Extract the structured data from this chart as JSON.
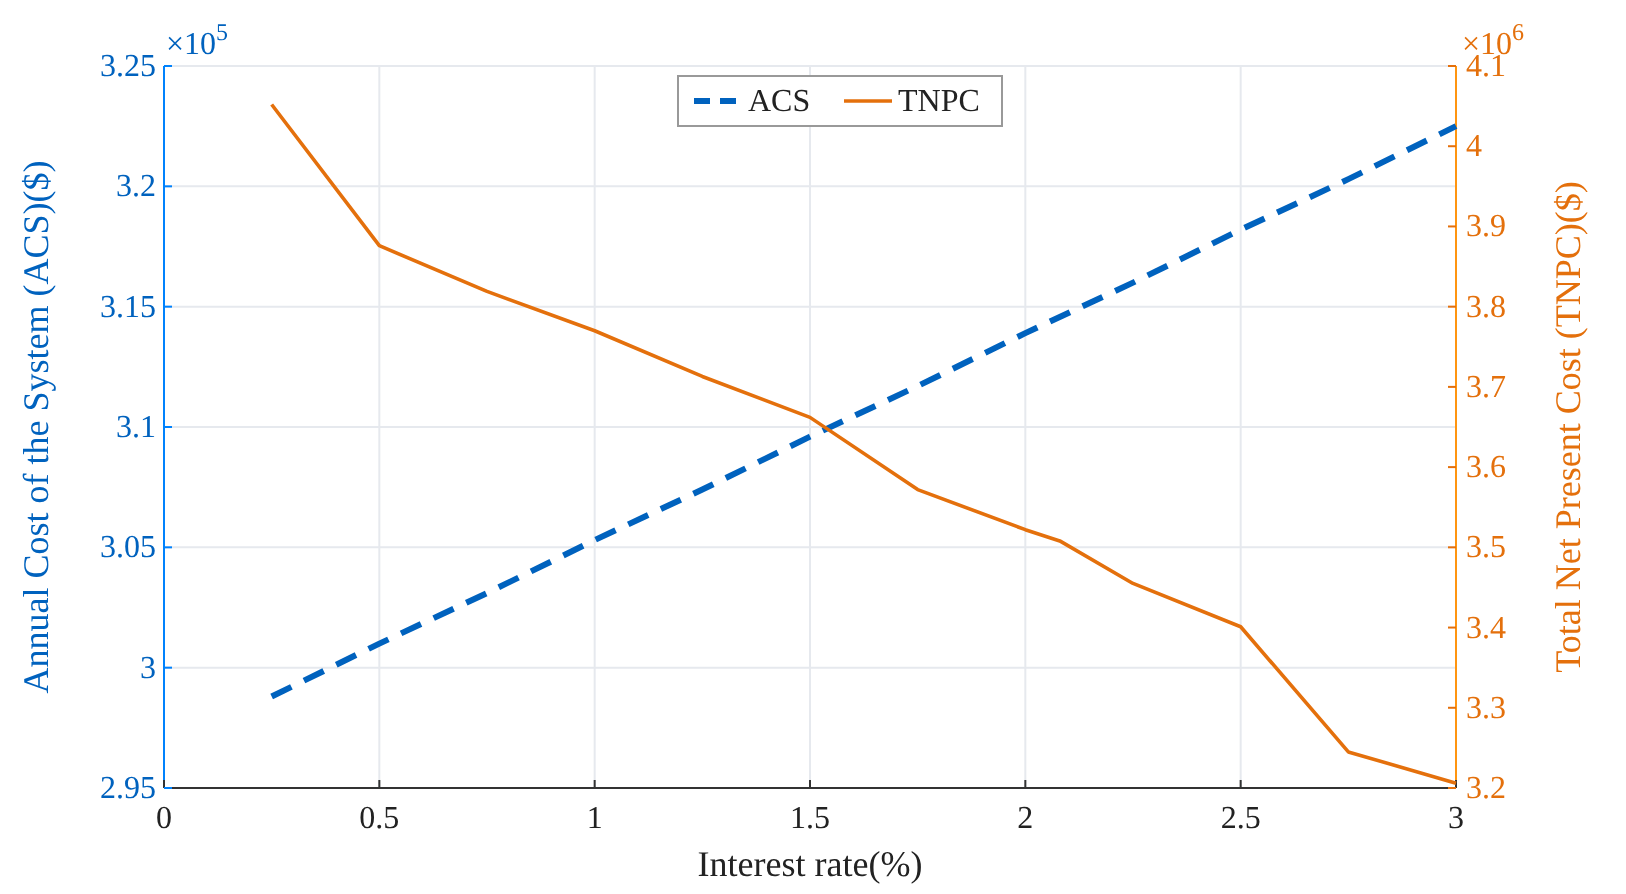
{
  "chart_data": {
    "type": "line",
    "xlabel": "Interest rate(%)",
    "ylabel": "Annual Cost of the System  (ACS)($)",
    "y2label": "Total Net Present Cost  (TNPC)($)",
    "annotations": [
      "×10$^{5}$",
      "×10$^{6}$"
    ],
    "series": [
      {
        "name": "ACS",
        "color": "#0062be",
        "line_style": "dashed",
        "x": [
          0.25,
          0.5,
          0.75,
          1,
          1.25,
          1.5,
          1.75,
          2,
          2.25,
          2.5,
          2.75,
          3
        ],
        "values": [
          2.988,
          3.01,
          3.031,
          3.053,
          3.074,
          3.096,
          3.117,
          3.139,
          3.16,
          3.182,
          3.203,
          3.225
        ]
      },
      {
        "name": "TNPC",
        "color": "#e4700c",
        "line_style": "solid",
        "axis": "y2",
        "x": [
          0.25,
          0.5,
          0.75,
          1,
          1.25,
          1.5,
          1.75,
          2,
          2.08,
          2.25,
          2.5,
          2.75,
          3
        ],
        "values": [
          4.052,
          3.876,
          3.819,
          3.77,
          3.713,
          3.662,
          3.572,
          3.522,
          3.508,
          3.455,
          3.401,
          3.245,
          3.206
        ]
      }
    ],
    "xlim": [
      0,
      3
    ],
    "xticks": [
      0,
      0.5,
      1,
      1.5,
      2,
      2.5,
      3
    ],
    "ylim": [
      2.95,
      3.25
    ],
    "yticks": [
      2.95,
      3,
      3.05,
      3.1,
      3.15,
      3.2,
      3.25
    ],
    "y2lim": [
      3.2,
      4.1
    ],
    "y2ticks": [
      3.2,
      3.3,
      3.4,
      3.5,
      3.6,
      3.7,
      3.8,
      3.9,
      4,
      4.1
    ],
    "grid": true,
    "legend": "top",
    "marker": "none"
  }
}
